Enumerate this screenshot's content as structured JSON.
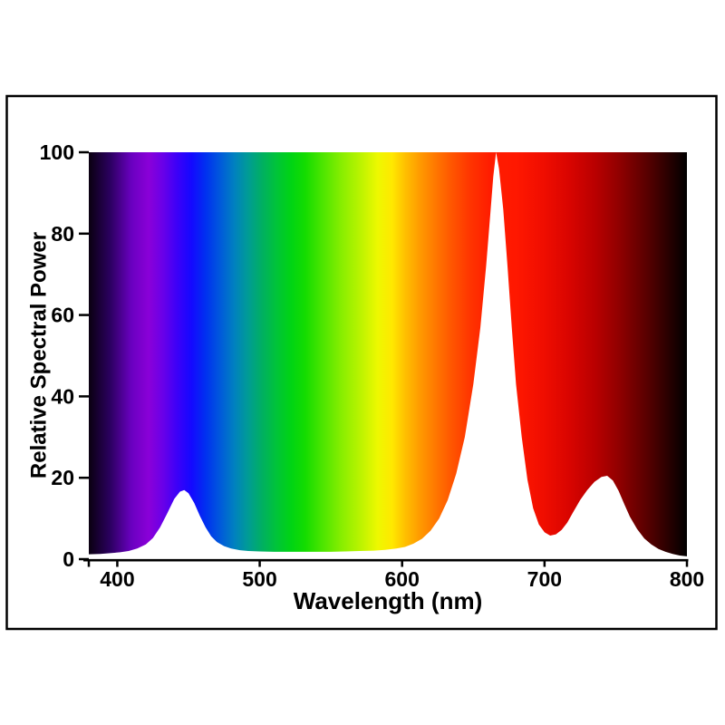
{
  "chart_data": {
    "type": "area",
    "title": "",
    "xlabel": "Wavelength (nm)",
    "ylabel": "Relative Spectral Power",
    "xlim": [
      380,
      800
    ],
    "ylim": [
      0,
      100
    ],
    "x_ticks": [
      400,
      500,
      600,
      700,
      800
    ],
    "x_minor_ticks": [
      380
    ],
    "y_ticks": [
      0,
      20,
      40,
      60,
      80,
      100
    ],
    "grid": false,
    "legend": "none",
    "background_style": "visible-light-spectrum-gradient-above-curve",
    "curve_fill_color": "#ffffff",
    "axis_color": "#000000",
    "frame_color": "#000000",
    "text_color": "#000000",
    "peaks": [
      {
        "wavelength_nm": 447,
        "relative_power": 17
      },
      {
        "wavelength_nm": 666,
        "relative_power": 100
      },
      {
        "wavelength_nm": 744,
        "relative_power": 20.5
      }
    ],
    "series": [
      {
        "name": "relative-spectral-power-distribution",
        "points": [
          [
            380,
            1.2
          ],
          [
            388,
            1.3
          ],
          [
            396,
            1.5
          ],
          [
            402,
            1.7
          ],
          [
            408,
            2.0
          ],
          [
            414,
            2.6
          ],
          [
            420,
            3.6
          ],
          [
            425,
            5.2
          ],
          [
            430,
            7.8
          ],
          [
            435,
            11.2
          ],
          [
            440,
            14.8
          ],
          [
            444,
            16.6
          ],
          [
            447,
            17.0
          ],
          [
            450,
            16.2
          ],
          [
            454,
            13.8
          ],
          [
            458,
            10.6
          ],
          [
            462,
            7.8
          ],
          [
            466,
            5.6
          ],
          [
            470,
            4.2
          ],
          [
            475,
            3.2
          ],
          [
            480,
            2.6
          ],
          [
            486,
            2.2
          ],
          [
            492,
            2.0
          ],
          [
            500,
            1.9
          ],
          [
            510,
            1.8
          ],
          [
            520,
            1.8
          ],
          [
            530,
            1.8
          ],
          [
            540,
            1.8
          ],
          [
            550,
            1.8
          ],
          [
            560,
            1.9
          ],
          [
            570,
            2.0
          ],
          [
            580,
            2.1
          ],
          [
            588,
            2.3
          ],
          [
            596,
            2.6
          ],
          [
            602,
            3.0
          ],
          [
            608,
            3.8
          ],
          [
            614,
            5.0
          ],
          [
            620,
            7.0
          ],
          [
            626,
            10.0
          ],
          [
            632,
            14.5
          ],
          [
            638,
            21.0
          ],
          [
            644,
            30.0
          ],
          [
            650,
            43.0
          ],
          [
            655,
            57.0
          ],
          [
            659,
            72.0
          ],
          [
            662,
            85.0
          ],
          [
            664,
            94.0
          ],
          [
            666,
            100.0
          ],
          [
            668,
            96.0
          ],
          [
            671,
            86.0
          ],
          [
            674,
            72.0
          ],
          [
            677,
            57.0
          ],
          [
            680,
            43.0
          ],
          [
            684,
            30.0
          ],
          [
            688,
            19.5
          ],
          [
            692,
            12.5
          ],
          [
            696,
            8.5
          ],
          [
            700,
            6.6
          ],
          [
            704,
            5.8
          ],
          [
            708,
            6.1
          ],
          [
            712,
            7.2
          ],
          [
            716,
            9.0
          ],
          [
            720,
            11.5
          ],
          [
            725,
            14.5
          ],
          [
            730,
            17.0
          ],
          [
            735,
            19.0
          ],
          [
            740,
            20.2
          ],
          [
            744,
            20.5
          ],
          [
            748,
            19.3
          ],
          [
            752,
            16.8
          ],
          [
            756,
            13.5
          ],
          [
            760,
            10.4
          ],
          [
            765,
            7.4
          ],
          [
            770,
            5.1
          ],
          [
            775,
            3.6
          ],
          [
            780,
            2.5
          ],
          [
            785,
            1.8
          ],
          [
            790,
            1.3
          ],
          [
            795,
            0.9
          ],
          [
            800,
            0.7
          ]
        ]
      }
    ],
    "spectrum_gradient_stops": [
      {
        "nm": 380,
        "color": "#0a0010"
      },
      {
        "nm": 395,
        "color": "#2b0060"
      },
      {
        "nm": 410,
        "color": "#6a00c0"
      },
      {
        "nm": 422,
        "color": "#8a00d8"
      },
      {
        "nm": 432,
        "color": "#6a00e8"
      },
      {
        "nm": 442,
        "color": "#3c00f8"
      },
      {
        "nm": 452,
        "color": "#1408ff"
      },
      {
        "nm": 462,
        "color": "#0030f0"
      },
      {
        "nm": 472,
        "color": "#0058dc"
      },
      {
        "nm": 482,
        "color": "#0080c0"
      },
      {
        "nm": 492,
        "color": "#009c94"
      },
      {
        "nm": 502,
        "color": "#00b060"
      },
      {
        "nm": 512,
        "color": "#00c438"
      },
      {
        "nm": 522,
        "color": "#00d414"
      },
      {
        "nm": 532,
        "color": "#14dc00"
      },
      {
        "nm": 545,
        "color": "#50e600"
      },
      {
        "nm": 558,
        "color": "#8aee00"
      },
      {
        "nm": 572,
        "color": "#c0f400"
      },
      {
        "nm": 583,
        "color": "#eef800"
      },
      {
        "nm": 593,
        "color": "#ffe800"
      },
      {
        "nm": 602,
        "color": "#ffc000"
      },
      {
        "nm": 612,
        "color": "#ff9c00"
      },
      {
        "nm": 622,
        "color": "#ff7c00"
      },
      {
        "nm": 634,
        "color": "#ff5800"
      },
      {
        "nm": 648,
        "color": "#ff3400"
      },
      {
        "nm": 662,
        "color": "#ff1c00"
      },
      {
        "nm": 680,
        "color": "#ff1800"
      },
      {
        "nm": 700,
        "color": "#ef0d00"
      },
      {
        "nm": 718,
        "color": "#d80400"
      },
      {
        "nm": 736,
        "color": "#b80000"
      },
      {
        "nm": 754,
        "color": "#8c0000"
      },
      {
        "nm": 772,
        "color": "#580000"
      },
      {
        "nm": 786,
        "color": "#2c0000"
      },
      {
        "nm": 800,
        "color": "#000000"
      }
    ]
  }
}
